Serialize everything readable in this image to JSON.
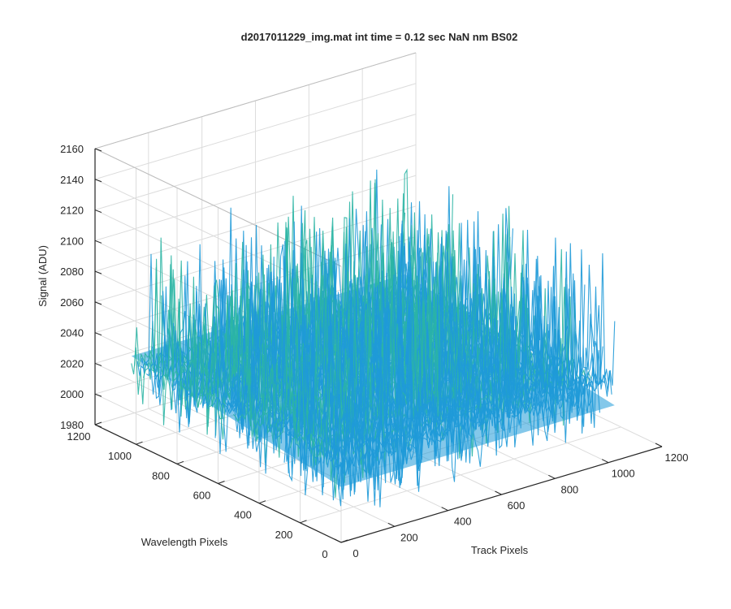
{
  "chart_data": {
    "type": "surface",
    "title": "d2017011229_img.mat int time = 0.12 sec  NaN nm BS02",
    "xlabel": "Track Pixels",
    "ylabel": "Wavelength Pixels",
    "zlabel": "Signal (ADU)",
    "xlim": [
      0,
      1200
    ],
    "ylim": [
      0,
      1200
    ],
    "zlim": [
      1980,
      2160
    ],
    "x_ticks": [
      "0",
      "200",
      "400",
      "600",
      "800",
      "1000",
      "1200"
    ],
    "y_ticks": [
      "0",
      "200",
      "400",
      "600",
      "800",
      "1000",
      "1200"
    ],
    "z_ticks": [
      "1980",
      "2000",
      "2020",
      "2040",
      "2060",
      "2080",
      "2100",
      "2120",
      "2140",
      "2160"
    ],
    "data_extent": {
      "x": [
        1,
        1024
      ],
      "y": [
        1,
        1024
      ]
    },
    "signal_baseline": 2030,
    "signal_range": [
      1990,
      2110
    ],
    "colormap": "parula",
    "grid": true,
    "colors": {
      "low": "#0072bd",
      "mid_low": "#1f9ad8",
      "mid": "#2bb5a4",
      "mid_high": "#8fbd5a",
      "high": "#e8c84a",
      "axis": "#262626",
      "grid": "#dcdcdc"
    }
  }
}
